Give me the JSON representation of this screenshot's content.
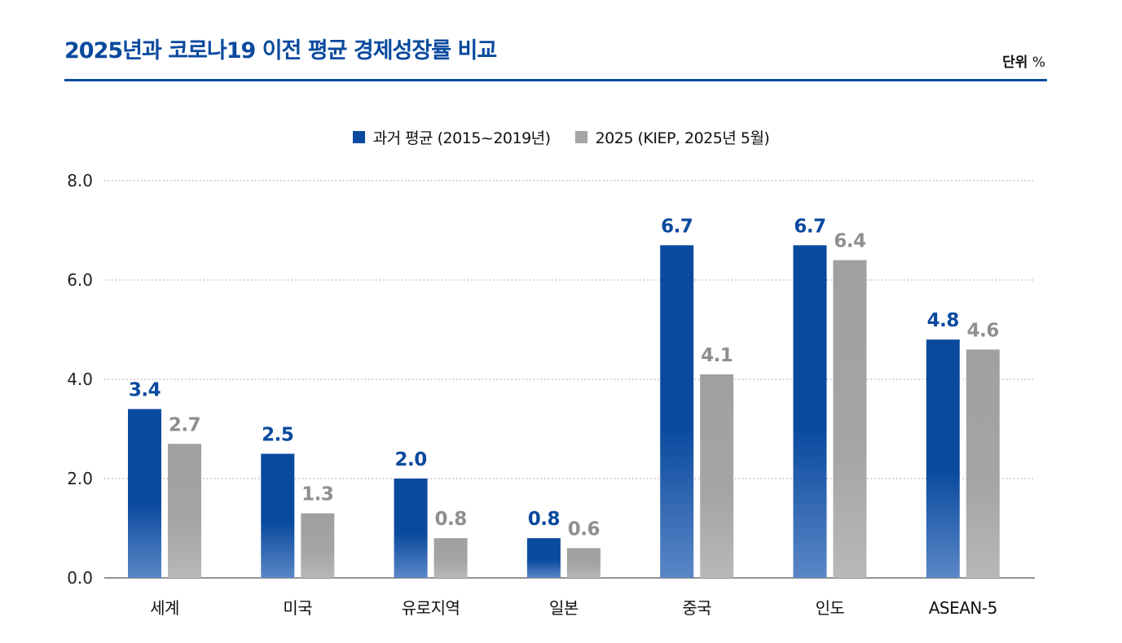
{
  "header": {
    "title": "2025년과 코로나19 이전 평균 경제성장률 비교",
    "unit_label": "단위",
    "unit_value": "%"
  },
  "colors": {
    "series1": "#0a4a9e",
    "series2": "#a5a5a5",
    "series1_label": "#0a4a9e",
    "series2_label": "#8f8f8f"
  },
  "chart_data": {
    "type": "bar",
    "title": "2025년과 코로나19 이전 평균 경제성장률 비교",
    "xlabel": "",
    "ylabel": "",
    "ylim": [
      0,
      8
    ],
    "yticks": [
      "0.0",
      "2.0",
      "4.0",
      "6.0",
      "8.0"
    ],
    "ytick_values": [
      0,
      2,
      4,
      6,
      8
    ],
    "grid": true,
    "legend_position": "top-center",
    "categories": [
      "세계",
      "미국",
      "유로지역",
      "일본",
      "중국",
      "인도",
      "ASEAN-5"
    ],
    "series": [
      {
        "name": "과거 평균 (2015~2019년)",
        "values": [
          3.4,
          2.5,
          2.0,
          0.8,
          6.7,
          6.7,
          4.8
        ],
        "labels": [
          "3.4",
          "2.5",
          "2.0",
          "0.8",
          "6.7",
          "6.7",
          "4.8"
        ]
      },
      {
        "name": "2025 (KIEP, 2025년 5월)",
        "values": [
          2.7,
          1.3,
          0.8,
          0.6,
          4.1,
          6.4,
          4.6
        ],
        "labels": [
          "2.7",
          "1.3",
          "0.8",
          "0.6",
          "4.1",
          "6.4",
          "4.6"
        ]
      }
    ]
  }
}
